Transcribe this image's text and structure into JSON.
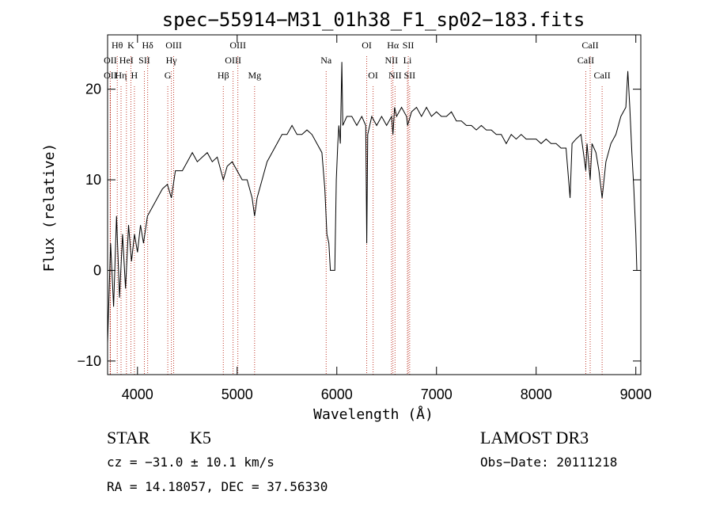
{
  "chart_data": {
    "type": "line",
    "title": "spec−55914−M31_01h38_F1_sp02−183.fits",
    "xlabel": "Wavelength (Å)",
    "ylabel": "Flux (relative)",
    "xlim": [
      3700,
      9050
    ],
    "ylim": [
      -11.5,
      26
    ],
    "x_ticks": [
      {
        "v": 4000,
        "label": "4000"
      },
      {
        "v": 5000,
        "label": "5000"
      },
      {
        "v": 6000,
        "label": "6000"
      },
      {
        "v": 7000,
        "label": "7000"
      },
      {
        "v": 8000,
        "label": "8000"
      },
      {
        "v": 9000,
        "label": "9000"
      }
    ],
    "y_ticks": [
      {
        "v": -10,
        "label": "−10"
      },
      {
        "v": 0,
        "label": "0"
      },
      {
        "v": 10,
        "label": "10"
      },
      {
        "v": 20,
        "label": "20"
      }
    ],
    "series": [
      {
        "name": "spectrum",
        "points": [
          [
            3700,
            -8
          ],
          [
            3730,
            3
          ],
          [
            3760,
            -4
          ],
          [
            3790,
            6
          ],
          [
            3820,
            -3
          ],
          [
            3850,
            4
          ],
          [
            3880,
            -2
          ],
          [
            3910,
            5
          ],
          [
            3940,
            1
          ],
          [
            3970,
            4
          ],
          [
            4000,
            2
          ],
          [
            4030,
            5
          ],
          [
            4060,
            3
          ],
          [
            4100,
            6
          ],
          [
            4150,
            7
          ],
          [
            4200,
            8
          ],
          [
            4250,
            9
          ],
          [
            4300,
            9.5
          ],
          [
            4340,
            8
          ],
          [
            4380,
            11
          ],
          [
            4450,
            11
          ],
          [
            4500,
            12
          ],
          [
            4550,
            13
          ],
          [
            4600,
            12
          ],
          [
            4650,
            12.5
          ],
          [
            4700,
            13
          ],
          [
            4750,
            12
          ],
          [
            4800,
            12.5
          ],
          [
            4861,
            10
          ],
          [
            4900,
            11.5
          ],
          [
            4950,
            12
          ],
          [
            5000,
            11
          ],
          [
            5050,
            10
          ],
          [
            5100,
            10
          ],
          [
            5150,
            8
          ],
          [
            5175,
            6
          ],
          [
            5200,
            8
          ],
          [
            5250,
            10
          ],
          [
            5300,
            12
          ],
          [
            5350,
            13
          ],
          [
            5400,
            14
          ],
          [
            5450,
            15
          ],
          [
            5500,
            15
          ],
          [
            5550,
            16
          ],
          [
            5600,
            15
          ],
          [
            5650,
            15
          ],
          [
            5700,
            15.5
          ],
          [
            5750,
            15
          ],
          [
            5800,
            14
          ],
          [
            5850,
            13
          ],
          [
            5880,
            9
          ],
          [
            5900,
            4
          ],
          [
            5920,
            3
          ],
          [
            5935,
            0
          ],
          [
            5980,
            0
          ],
          [
            5995,
            10
          ],
          [
            6010,
            14
          ],
          [
            6020,
            16
          ],
          [
            6035,
            14
          ],
          [
            6050,
            23
          ],
          [
            6060,
            16
          ],
          [
            6100,
            17
          ],
          [
            6150,
            17
          ],
          [
            6200,
            16
          ],
          [
            6250,
            17
          ],
          [
            6290,
            16
          ],
          [
            6300,
            3
          ],
          [
            6310,
            15
          ],
          [
            6350,
            17
          ],
          [
            6400,
            16
          ],
          [
            6450,
            17
          ],
          [
            6500,
            16
          ],
          [
            6550,
            17
          ],
          [
            6563,
            15
          ],
          [
            6580,
            18
          ],
          [
            6600,
            17
          ],
          [
            6650,
            18
          ],
          [
            6700,
            17
          ],
          [
            6710,
            16
          ],
          [
            6750,
            17.5
          ],
          [
            6800,
            18
          ],
          [
            6850,
            17
          ],
          [
            6900,
            18
          ],
          [
            6950,
            17
          ],
          [
            7000,
            17.5
          ],
          [
            7050,
            17
          ],
          [
            7100,
            17
          ],
          [
            7150,
            17.5
          ],
          [
            7200,
            16.5
          ],
          [
            7250,
            16.5
          ],
          [
            7300,
            16
          ],
          [
            7350,
            16
          ],
          [
            7400,
            15.5
          ],
          [
            7450,
            16
          ],
          [
            7500,
            15.5
          ],
          [
            7550,
            15.5
          ],
          [
            7600,
            15
          ],
          [
            7650,
            15
          ],
          [
            7700,
            14
          ],
          [
            7750,
            15
          ],
          [
            7800,
            14.5
          ],
          [
            7850,
            15
          ],
          [
            7900,
            14.5
          ],
          [
            7950,
            14.5
          ],
          [
            8000,
            14.5
          ],
          [
            8050,
            14
          ],
          [
            8100,
            14.5
          ],
          [
            8150,
            14
          ],
          [
            8200,
            14
          ],
          [
            8250,
            13.5
          ],
          [
            8300,
            13.5
          ],
          [
            8340,
            8
          ],
          [
            8360,
            14
          ],
          [
            8400,
            14.5
          ],
          [
            8450,
            15
          ],
          [
            8498,
            11
          ],
          [
            8510,
            14
          ],
          [
            8542,
            10
          ],
          [
            8560,
            14
          ],
          [
            8600,
            13
          ],
          [
            8630,
            11
          ],
          [
            8662,
            8
          ],
          [
            8700,
            12
          ],
          [
            8750,
            14
          ],
          [
            8800,
            15
          ],
          [
            8850,
            17
          ],
          [
            8900,
            18
          ],
          [
            8920,
            22
          ],
          [
            8940,
            18
          ],
          [
            8960,
            13
          ],
          [
            8980,
            9
          ],
          [
            9000,
            4
          ],
          [
            9010,
            0
          ]
        ]
      }
    ],
    "line_markers": [
      {
        "label": "Hθ",
        "x": 3797,
        "row": 0
      },
      {
        "label": "OII",
        "x": 3727,
        "row": 1
      },
      {
        "label": "OII",
        "x": 3727,
        "row": 2
      },
      {
        "label": "Hη",
        "x": 3835,
        "row": 2
      },
      {
        "label": "K",
        "x": 3934,
        "row": 0
      },
      {
        "label": "Hδ",
        "x": 4102,
        "row": 0
      },
      {
        "label": "HeI",
        "x": 3889,
        "row": 1
      },
      {
        "label": "SII",
        "x": 4069,
        "row": 1
      },
      {
        "label": "H",
        "x": 3969,
        "row": 2
      },
      {
        "label": "OIII",
        "x": 4363,
        "row": 0
      },
      {
        "label": "Hγ",
        "x": 4340,
        "row": 1
      },
      {
        "label": "G",
        "x": 4304,
        "row": 2
      },
      {
        "label": "OIII",
        "x": 5007,
        "row": 0
      },
      {
        "label": "OIII",
        "x": 4959,
        "row": 1
      },
      {
        "label": "Hβ",
        "x": 4861,
        "row": 2
      },
      {
        "label": "Mg",
        "x": 5175,
        "row": 2
      },
      {
        "label": "Na",
        "x": 5893,
        "row": 1
      },
      {
        "label": "OI",
        "x": 6300,
        "row": 0
      },
      {
        "label": "OI",
        "x": 6364,
        "row": 2
      },
      {
        "label": "Hα",
        "x": 6563,
        "row": 0
      },
      {
        "label": "SII",
        "x": 6717,
        "row": 0
      },
      {
        "label": "NII",
        "x": 6548,
        "row": 1
      },
      {
        "label": "Li",
        "x": 6708,
        "row": 1
      },
      {
        "label": "NII",
        "x": 6584,
        "row": 2
      },
      {
        "label": "SII",
        "x": 6731,
        "row": 2
      },
      {
        "label": "CaII",
        "x": 8542,
        "row": 0
      },
      {
        "label": "CaII",
        "x": 8498,
        "row": 1
      },
      {
        "label": "CaII",
        "x": 8662,
        "row": 2
      }
    ]
  },
  "info": {
    "object_class": "STAR",
    "subclass": "K5",
    "survey": "LAMOST DR3",
    "cz": "cz = −31.0 ± 10.1 km/s",
    "obs_date": "Obs−Date: 20111218",
    "radec": "RA =  14.18057, DEC =  37.56330"
  }
}
